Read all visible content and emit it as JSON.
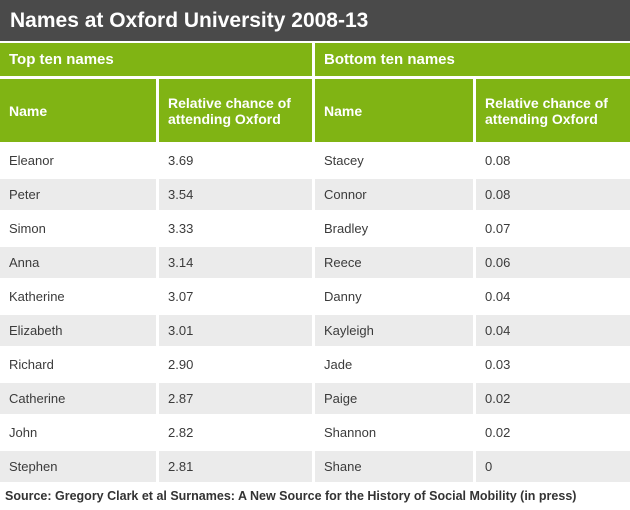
{
  "chart_data": {
    "type": "table",
    "title": "Names at Oxford University 2008-13",
    "tables": [
      {
        "section": "Top ten names",
        "columns": [
          "Name",
          "Relative chance of attending Oxford"
        ],
        "rows": [
          {
            "name": "Eleanor",
            "value": "3.69"
          },
          {
            "name": "Peter",
            "value": "3.54"
          },
          {
            "name": "Simon",
            "value": "3.33"
          },
          {
            "name": "Anna",
            "value": "3.14"
          },
          {
            "name": "Katherine",
            "value": "3.07"
          },
          {
            "name": "Elizabeth",
            "value": "3.01"
          },
          {
            "name": "Richard",
            "value": "2.90"
          },
          {
            "name": "Catherine",
            "value": "2.87"
          },
          {
            "name": "John",
            "value": "2.82"
          },
          {
            "name": "Stephen",
            "value": "2.81"
          }
        ]
      },
      {
        "section": "Bottom ten names",
        "columns": [
          "Name",
          "Relative chance of attending Oxford"
        ],
        "rows": [
          {
            "name": "Stacey",
            "value": "0.08"
          },
          {
            "name": "Connor",
            "value": "0.08"
          },
          {
            "name": "Bradley",
            "value": "0.07"
          },
          {
            "name": "Reece",
            "value": "0.06"
          },
          {
            "name": "Danny",
            "value": "0.04"
          },
          {
            "name": "Kayleigh",
            "value": "0.04"
          },
          {
            "name": "Jade",
            "value": "0.03"
          },
          {
            "name": "Paige",
            "value": "0.02"
          },
          {
            "name": "Shannon",
            "value": "0.02"
          },
          {
            "name": "Shane",
            "value": "0"
          }
        ]
      }
    ],
    "source": "Source: Gregory Clark et al Surnames: A New Source for the History of Social Mobility (in press)",
    "layout_hints": {
      "legend_position": "none",
      "grid": "off"
    }
  },
  "colors": {
    "header_bar": "#4a4a4a",
    "table_green": "#80b414",
    "row_alternate": "#ebebeb",
    "text_dark": "#3b3b3b"
  }
}
